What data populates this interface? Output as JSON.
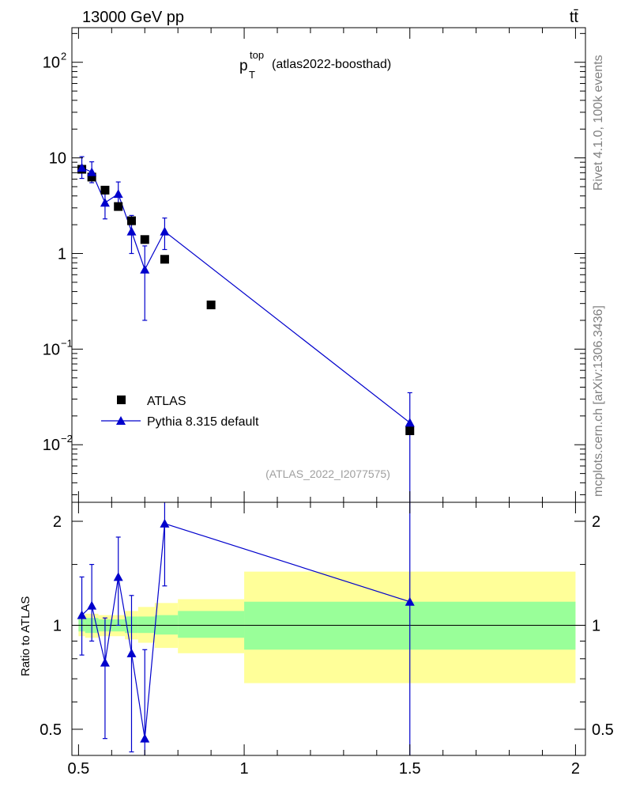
{
  "header": {
    "left": "13000 GeV pp",
    "right": "tt̄"
  },
  "side_labels": {
    "rivet": "Rivet 4.1.0,  100k events",
    "mcplots": "mcplots.cern.ch [arXiv:1306.3436]"
  },
  "analysis_tag": "(ATLAS_2022_I2077575)",
  "chart_data": [
    {
      "type": "scatter",
      "panel": "main",
      "title_main": "p",
      "title_sup": "top",
      "title_sub": "T",
      "title_suffix": "(atlas2022-boosthad)",
      "xlim": [
        0.48,
        2.03
      ],
      "ylim": [
        0.0025,
        230
      ],
      "yscale": "log",
      "ytick_labels": [
        {
          "value": 100,
          "base": "10",
          "exp": "2"
        },
        {
          "value": 10,
          "base": "10",
          "exp": ""
        },
        {
          "value": 1,
          "base": "1",
          "exp": ""
        },
        {
          "value": 0.1,
          "base": "10",
          "exp": "−1"
        },
        {
          "value": 0.01,
          "base": "10",
          "exp": "−2"
        }
      ],
      "legend": [
        "ATLAS",
        "Pythia 8.315 default"
      ],
      "series": [
        {
          "name": "ATLAS",
          "marker": "square",
          "color": "#000000",
          "x": [
            0.51,
            0.54,
            0.58,
            0.62,
            0.66,
            0.7,
            0.76,
            0.9,
            1.5
          ],
          "y": [
            7.6,
            6.3,
            4.6,
            3.1,
            2.2,
            1.4,
            0.87,
            0.29,
            0.014
          ]
        },
        {
          "name": "Pythia 8.315 default",
          "marker": "triangle",
          "color": "#0000cc",
          "x": [
            0.51,
            0.54,
            0.58,
            0.62,
            0.66,
            0.7,
            0.76,
            1.5
          ],
          "y": [
            7.9,
            7.1,
            3.4,
            4.2,
            1.7,
            0.68,
            1.7,
            0.017
          ],
          "yerr_low": [
            6.1,
            5.5,
            2.3,
            3.0,
            1.0,
            0.2,
            1.1,
            0.0001
          ],
          "yerr_high": [
            10.3,
            9.1,
            4.8,
            5.6,
            2.5,
            1.2,
            2.35,
            0.035
          ]
        }
      ]
    },
    {
      "type": "scatter",
      "panel": "ratio",
      "ylabel": "Ratio to ATLAS",
      "xlim": [
        0.48,
        2.03
      ],
      "ylim": [
        0.42,
        2.27
      ],
      "yscale": "log",
      "xtick_labels": [
        "0.5",
        "1",
        "1.5",
        "2"
      ],
      "xtick_values": [
        0.5,
        1,
        1.5,
        2
      ],
      "ytick_labels": [
        "0.5",
        "1",
        "2"
      ],
      "ytick_values": [
        0.5,
        1,
        2
      ],
      "bands": [
        {
          "x0": 0.5,
          "x1": 0.52,
          "inner": [
            0.96,
            1.04
          ],
          "outer": [
            0.93,
            1.07
          ]
        },
        {
          "x0": 0.52,
          "x1": 0.56,
          "inner": [
            0.95,
            1.05
          ],
          "outer": [
            0.92,
            1.08
          ]
        },
        {
          "x0": 0.56,
          "x1": 0.6,
          "inner": [
            0.96,
            1.04
          ],
          "outer": [
            0.93,
            1.07
          ]
        },
        {
          "x0": 0.6,
          "x1": 0.64,
          "inner": [
            0.96,
            1.04
          ],
          "outer": [
            0.93,
            1.07
          ]
        },
        {
          "x0": 0.64,
          "x1": 0.68,
          "inner": [
            0.95,
            1.06
          ],
          "outer": [
            0.91,
            1.1
          ]
        },
        {
          "x0": 0.68,
          "x1": 0.73,
          "inner": [
            0.95,
            1.06
          ],
          "outer": [
            0.89,
            1.13
          ]
        },
        {
          "x0": 0.73,
          "x1": 0.8,
          "inner": [
            0.94,
            1.07
          ],
          "outer": [
            0.86,
            1.16
          ]
        },
        {
          "x0": 0.8,
          "x1": 1.0,
          "inner": [
            0.92,
            1.1
          ],
          "outer": [
            0.83,
            1.19
          ]
        },
        {
          "x0": 1.0,
          "x1": 2.0,
          "inner": [
            0.85,
            1.17
          ],
          "outer": [
            0.68,
            1.43
          ]
        }
      ],
      "band_colors": {
        "inner": "#99ff99",
        "outer": "#ffff99"
      },
      "series": [
        {
          "name": "Pythia 8.315 default",
          "color": "#0000cc",
          "x": [
            0.51,
            0.54,
            0.58,
            0.62,
            0.66,
            0.7,
            0.76,
            1.5
          ],
          "y": [
            1.07,
            1.14,
            0.78,
            1.38,
            0.83,
            0.47,
            1.97,
            1.17
          ],
          "yerr_low": [
            0.82,
            0.9,
            0.47,
            1.0,
            0.43,
            0.3,
            1.3,
            0.3
          ],
          "yerr_high": [
            1.38,
            1.5,
            1.05,
            1.8,
            1.22,
            0.85,
            2.5,
            2.5
          ]
        }
      ]
    }
  ]
}
